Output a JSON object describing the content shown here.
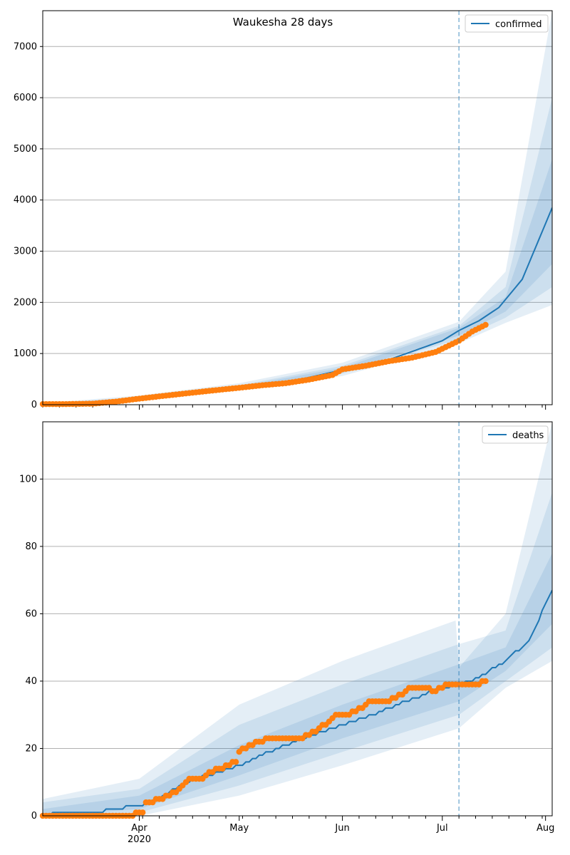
{
  "title": "Waukesha 28 days",
  "colors": {
    "model": "#1f77b4",
    "observed": "#ff7f0e",
    "band": "#1f77b4",
    "grid": "#b0b0b0",
    "vline": "#1f77b4"
  },
  "chart_data": [
    {
      "type": "line",
      "title": "Waukesha 28 days",
      "legend": {
        "position": "top-right",
        "entries": [
          "confirmed"
        ]
      },
      "xlabel": "",
      "ylabel": "",
      "xlim": [
        "2020-03-03",
        "2020-08-03"
      ],
      "ylim": [
        0,
        7700
      ],
      "yticks": [
        0,
        1000,
        2000,
        3000,
        4000,
        5000,
        6000,
        7000
      ],
      "grid": "horizontal",
      "forecast_start": "2020-07-06",
      "series": [
        {
          "name": "confirmed",
          "kind": "model-median",
          "points": [
            [
              "2020-03-03",
              0
            ],
            [
              "2020-03-15",
              10
            ],
            [
              "2020-03-25",
              60
            ],
            [
              "2020-04-01",
              120
            ],
            [
              "2020-04-15",
              220
            ],
            [
              "2020-05-01",
              330
            ],
            [
              "2020-05-15",
              430
            ],
            [
              "2020-06-01",
              680
            ],
            [
              "2020-06-15",
              880
            ],
            [
              "2020-07-01",
              1250
            ],
            [
              "2020-07-06",
              1450
            ],
            [
              "2020-07-12",
              1640
            ],
            [
              "2020-07-18",
              1900
            ],
            [
              "2020-07-25",
              2450
            ],
            [
              "2020-08-03",
              3850
            ]
          ]
        },
        {
          "kind": "observed",
          "points": [
            [
              "2020-03-03",
              12
            ],
            [
              "2020-03-10",
              12
            ],
            [
              "2020-03-18",
              20
            ],
            [
              "2020-03-25",
              60
            ],
            [
              "2020-03-31",
              110
            ],
            [
              "2020-04-08",
              170
            ],
            [
              "2020-04-15",
              220
            ],
            [
              "2020-04-22",
              270
            ],
            [
              "2020-05-01",
              330
            ],
            [
              "2020-05-08",
              380
            ],
            [
              "2020-05-15",
              420
            ],
            [
              "2020-05-22",
              490
            ],
            [
              "2020-05-29",
              580
            ],
            [
              "2020-06-01",
              690
            ],
            [
              "2020-06-08",
              760
            ],
            [
              "2020-06-15",
              850
            ],
            [
              "2020-06-22",
              920
            ],
            [
              "2020-06-29",
              1030
            ],
            [
              "2020-07-06",
              1250
            ],
            [
              "2020-07-10",
              1430
            ],
            [
              "2020-07-14",
              1560
            ]
          ]
        }
      ],
      "bands": [
        {
          "level": "outer",
          "lower": [
            [
              "2020-03-03",
              0
            ],
            [
              "2020-04-01",
              80
            ],
            [
              "2020-05-01",
              280
            ],
            [
              "2020-06-01",
              560
            ],
            [
              "2020-07-06",
              1200
            ],
            [
              "2020-07-20",
              1600
            ],
            [
              "2020-08-03",
              1950
            ]
          ],
          "upper": [
            [
              "2020-03-03",
              30
            ],
            [
              "2020-04-01",
              180
            ],
            [
              "2020-05-01",
              420
            ],
            [
              "2020-06-01",
              820
            ],
            [
              "2020-07-06",
              1620
            ],
            [
              "2020-07-20",
              2600
            ],
            [
              "2020-08-03",
              7700
            ]
          ]
        },
        {
          "level": "middle",
          "lower": [
            [
              "2020-03-03",
              0
            ],
            [
              "2020-04-01",
              95
            ],
            [
              "2020-05-01",
              300
            ],
            [
              "2020-06-01",
              610
            ],
            [
              "2020-07-06",
              1280
            ],
            [
              "2020-07-20",
              1700
            ],
            [
              "2020-08-03",
              2300
            ]
          ],
          "upper": [
            [
              "2020-03-03",
              20
            ],
            [
              "2020-04-01",
              150
            ],
            [
              "2020-05-01",
              380
            ],
            [
              "2020-06-01",
              760
            ],
            [
              "2020-07-06",
              1540
            ],
            [
              "2020-07-20",
              2300
            ],
            [
              "2020-08-03",
              6000
            ]
          ]
        },
        {
          "level": "inner",
          "lower": [
            [
              "2020-03-03",
              0
            ],
            [
              "2020-04-01",
              105
            ],
            [
              "2020-05-01",
              315
            ],
            [
              "2020-06-01",
              640
            ],
            [
              "2020-07-06",
              1350
            ],
            [
              "2020-07-20",
              1820
            ],
            [
              "2020-08-03",
              2750
            ]
          ],
          "upper": [
            [
              "2020-03-03",
              12
            ],
            [
              "2020-04-01",
              135
            ],
            [
              "2020-05-01",
              355
            ],
            [
              "2020-06-01",
              720
            ],
            [
              "2020-07-06",
              1500
            ],
            [
              "2020-07-20",
              2100
            ],
            [
              "2020-08-03",
              4800
            ]
          ]
        }
      ]
    },
    {
      "type": "line",
      "legend": {
        "position": "top-right",
        "entries": [
          "deaths"
        ]
      },
      "xlabel": "",
      "ylabel": "",
      "xlim": [
        "2020-03-03",
        "2020-08-03"
      ],
      "ylim": [
        0,
        117
      ],
      "yticks": [
        0,
        20,
        40,
        60,
        80,
        100
      ],
      "xticks": [
        {
          "date": "2020-04-01",
          "label": "Apr",
          "sublabel": "2020"
        },
        {
          "date": "2020-05-01",
          "label": "May",
          "sublabel": ""
        },
        {
          "date": "2020-06-01",
          "label": "Jun",
          "sublabel": ""
        },
        {
          "date": "2020-07-01",
          "label": "Jul",
          "sublabel": ""
        },
        {
          "date": "2020-08-01",
          "label": "Aug",
          "sublabel": ""
        }
      ],
      "grid": "horizontal",
      "forecast_start": "2020-07-06",
      "series": [
        {
          "name": "deaths",
          "kind": "model-median",
          "points": [
            [
              "2020-03-03",
              0
            ],
            [
              "2020-03-08",
              1
            ],
            [
              "2020-03-21",
              1
            ],
            [
              "2020-03-22",
              2
            ],
            [
              "2020-03-27",
              2
            ],
            [
              "2020-03-28",
              3
            ],
            [
              "2020-04-01",
              3
            ],
            [
              "2020-04-05",
              4
            ],
            [
              "2020-04-15",
              10
            ],
            [
              "2020-04-25",
              13
            ],
            [
              "2020-05-01",
              15
            ],
            [
              "2020-05-10",
              19
            ],
            [
              "2020-05-20",
              23
            ],
            [
              "2020-06-01",
              27
            ],
            [
              "2020-06-10",
              30
            ],
            [
              "2020-06-20",
              34
            ],
            [
              "2020-07-01",
              38
            ],
            [
              "2020-07-06",
              39
            ],
            [
              "2020-07-10",
              40
            ],
            [
              "2020-07-20",
              46
            ],
            [
              "2020-07-27",
              52
            ],
            [
              "2020-08-03",
              67
            ]
          ]
        },
        {
          "kind": "observed",
          "points": [
            [
              "2020-03-03",
              0
            ],
            [
              "2020-03-30",
              0
            ],
            [
              "2020-03-31",
              1
            ],
            [
              "2020-04-02",
              1
            ],
            [
              "2020-04-03",
              4
            ],
            [
              "2020-04-08",
              5
            ],
            [
              "2020-04-12",
              7
            ],
            [
              "2020-04-14",
              9
            ],
            [
              "2020-04-16",
              11
            ],
            [
              "2020-04-20",
              11
            ],
            [
              "2020-04-22",
              13
            ],
            [
              "2020-04-25",
              14
            ],
            [
              "2020-04-28",
              15
            ],
            [
              "2020-04-30",
              16
            ],
            [
              "2020-05-01",
              19
            ],
            [
              "2020-05-03",
              20
            ],
            [
              "2020-05-07",
              22
            ],
            [
              "2020-05-10",
              23
            ],
            [
              "2020-05-20",
              23
            ],
            [
              "2020-05-24",
              25
            ],
            [
              "2020-05-28",
              28
            ],
            [
              "2020-05-30",
              30
            ],
            [
              "2020-06-03",
              30
            ],
            [
              "2020-06-05",
              31
            ],
            [
              "2020-06-08",
              33
            ],
            [
              "2020-06-10",
              34
            ],
            [
              "2020-06-15",
              34
            ],
            [
              "2020-06-17",
              35
            ],
            [
              "2020-06-19",
              36
            ],
            [
              "2020-06-21",
              38
            ],
            [
              "2020-06-26",
              38
            ],
            [
              "2020-06-28",
              37
            ],
            [
              "2020-07-01",
              38
            ],
            [
              "2020-07-03",
              39
            ],
            [
              "2020-07-12",
              39
            ],
            [
              "2020-07-14",
              40
            ]
          ]
        }
      ],
      "bands": [
        {
          "level": "outer",
          "lower": [
            [
              "2020-03-03",
              0
            ],
            [
              "2020-04-01",
              0
            ],
            [
              "2020-05-01",
              6
            ],
            [
              "2020-06-01",
              15
            ],
            [
              "2020-07-06",
              26
            ],
            [
              "2020-07-20",
              38
            ],
            [
              "2020-08-03",
              46
            ]
          ],
          "upper": [
            [
              "2020-03-03",
              5
            ],
            [
              "2020-04-01",
              11
            ],
            [
              "2020-05-01",
              33
            ],
            [
              "2020-06-01",
              46
            ],
            [
              "2020-07-05",
              58
            ],
            [
              "2020-07-06",
              44
            ],
            [
              "2020-07-20",
              60
            ],
            [
              "2020-08-03",
              117
            ]
          ]
        },
        {
          "level": "middle",
          "lower": [
            [
              "2020-03-03",
              0
            ],
            [
              "2020-04-01",
              1
            ],
            [
              "2020-05-01",
              9
            ],
            [
              "2020-06-01",
              19
            ],
            [
              "2020-07-06",
              30
            ],
            [
              "2020-07-20",
              40
            ],
            [
              "2020-08-03",
              50
            ]
          ],
          "upper": [
            [
              "2020-03-03",
              4
            ],
            [
              "2020-04-01",
              8
            ],
            [
              "2020-05-01",
              27
            ],
            [
              "2020-06-01",
              39
            ],
            [
              "2020-07-06",
              51
            ],
            [
              "2020-07-20",
              55
            ],
            [
              "2020-08-03",
              96
            ]
          ]
        },
        {
          "level": "inner",
          "lower": [
            [
              "2020-03-03",
              0
            ],
            [
              "2020-04-01",
              2
            ],
            [
              "2020-05-01",
              12
            ],
            [
              "2020-06-01",
              23
            ],
            [
              "2020-07-06",
              34
            ],
            [
              "2020-07-20",
              43
            ],
            [
              "2020-08-03",
              57
            ]
          ],
          "upper": [
            [
              "2020-03-03",
              2
            ],
            [
              "2020-04-01",
              6
            ],
            [
              "2020-05-01",
              21
            ],
            [
              "2020-06-01",
              33
            ],
            [
              "2020-07-06",
              45
            ],
            [
              "2020-07-20",
              50
            ],
            [
              "2020-08-03",
              78
            ]
          ]
        }
      ]
    }
  ]
}
